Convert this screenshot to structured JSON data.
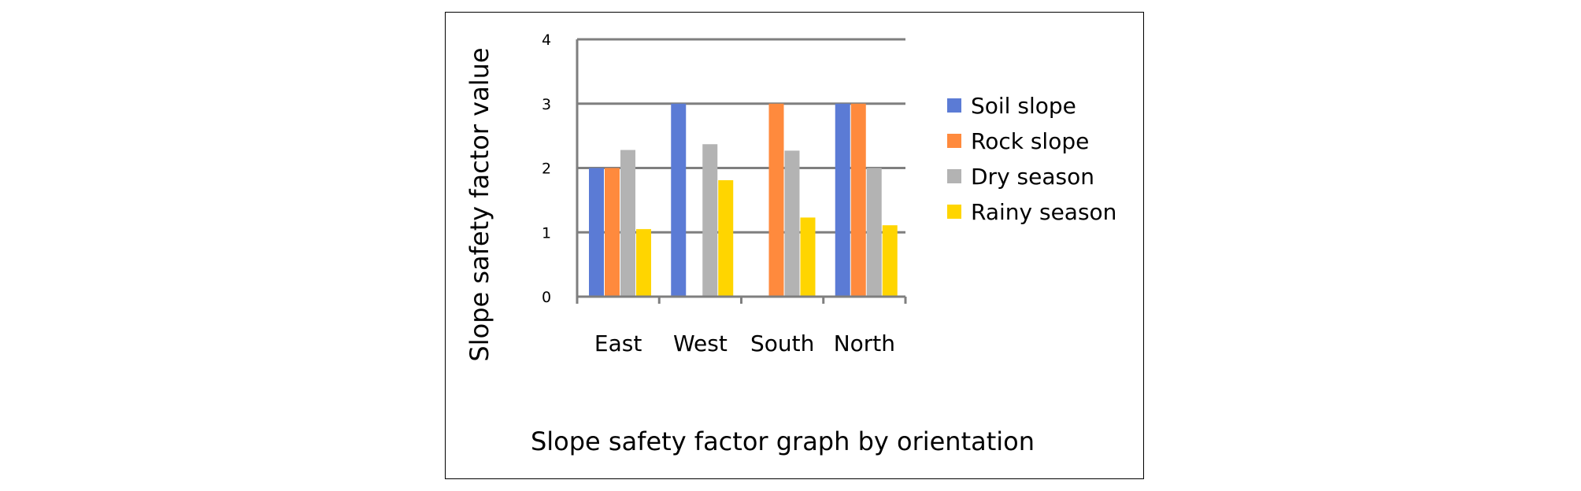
{
  "chart_data": {
    "type": "bar",
    "title": "",
    "caption": "Slope safety factor graph by orientation",
    "xlabel": "",
    "ylabel": "Slope safety factor value",
    "categories": [
      "East",
      "West",
      "South",
      "North"
    ],
    "series": [
      {
        "name": "Soil slope",
        "color": "#5B7BD5",
        "values": [
          2.0,
          3.0,
          0.0,
          3.0
        ]
      },
      {
        "name": "Rock slope",
        "color": "#FF8A3D",
        "values": [
          2.0,
          0.0,
          3.0,
          3.0
        ]
      },
      {
        "name": "Dry season",
        "color": "#B3B3B3",
        "values": [
          2.28,
          2.37,
          2.27,
          2.0
        ]
      },
      {
        "name": "Rainy season",
        "color": "#FFD500",
        "values": [
          1.05,
          1.81,
          1.23,
          1.11
        ]
      }
    ],
    "ylim": [
      0,
      4
    ],
    "yticks": [
      0,
      1,
      2,
      3,
      4
    ],
    "grid": true,
    "legend_position": "right"
  }
}
